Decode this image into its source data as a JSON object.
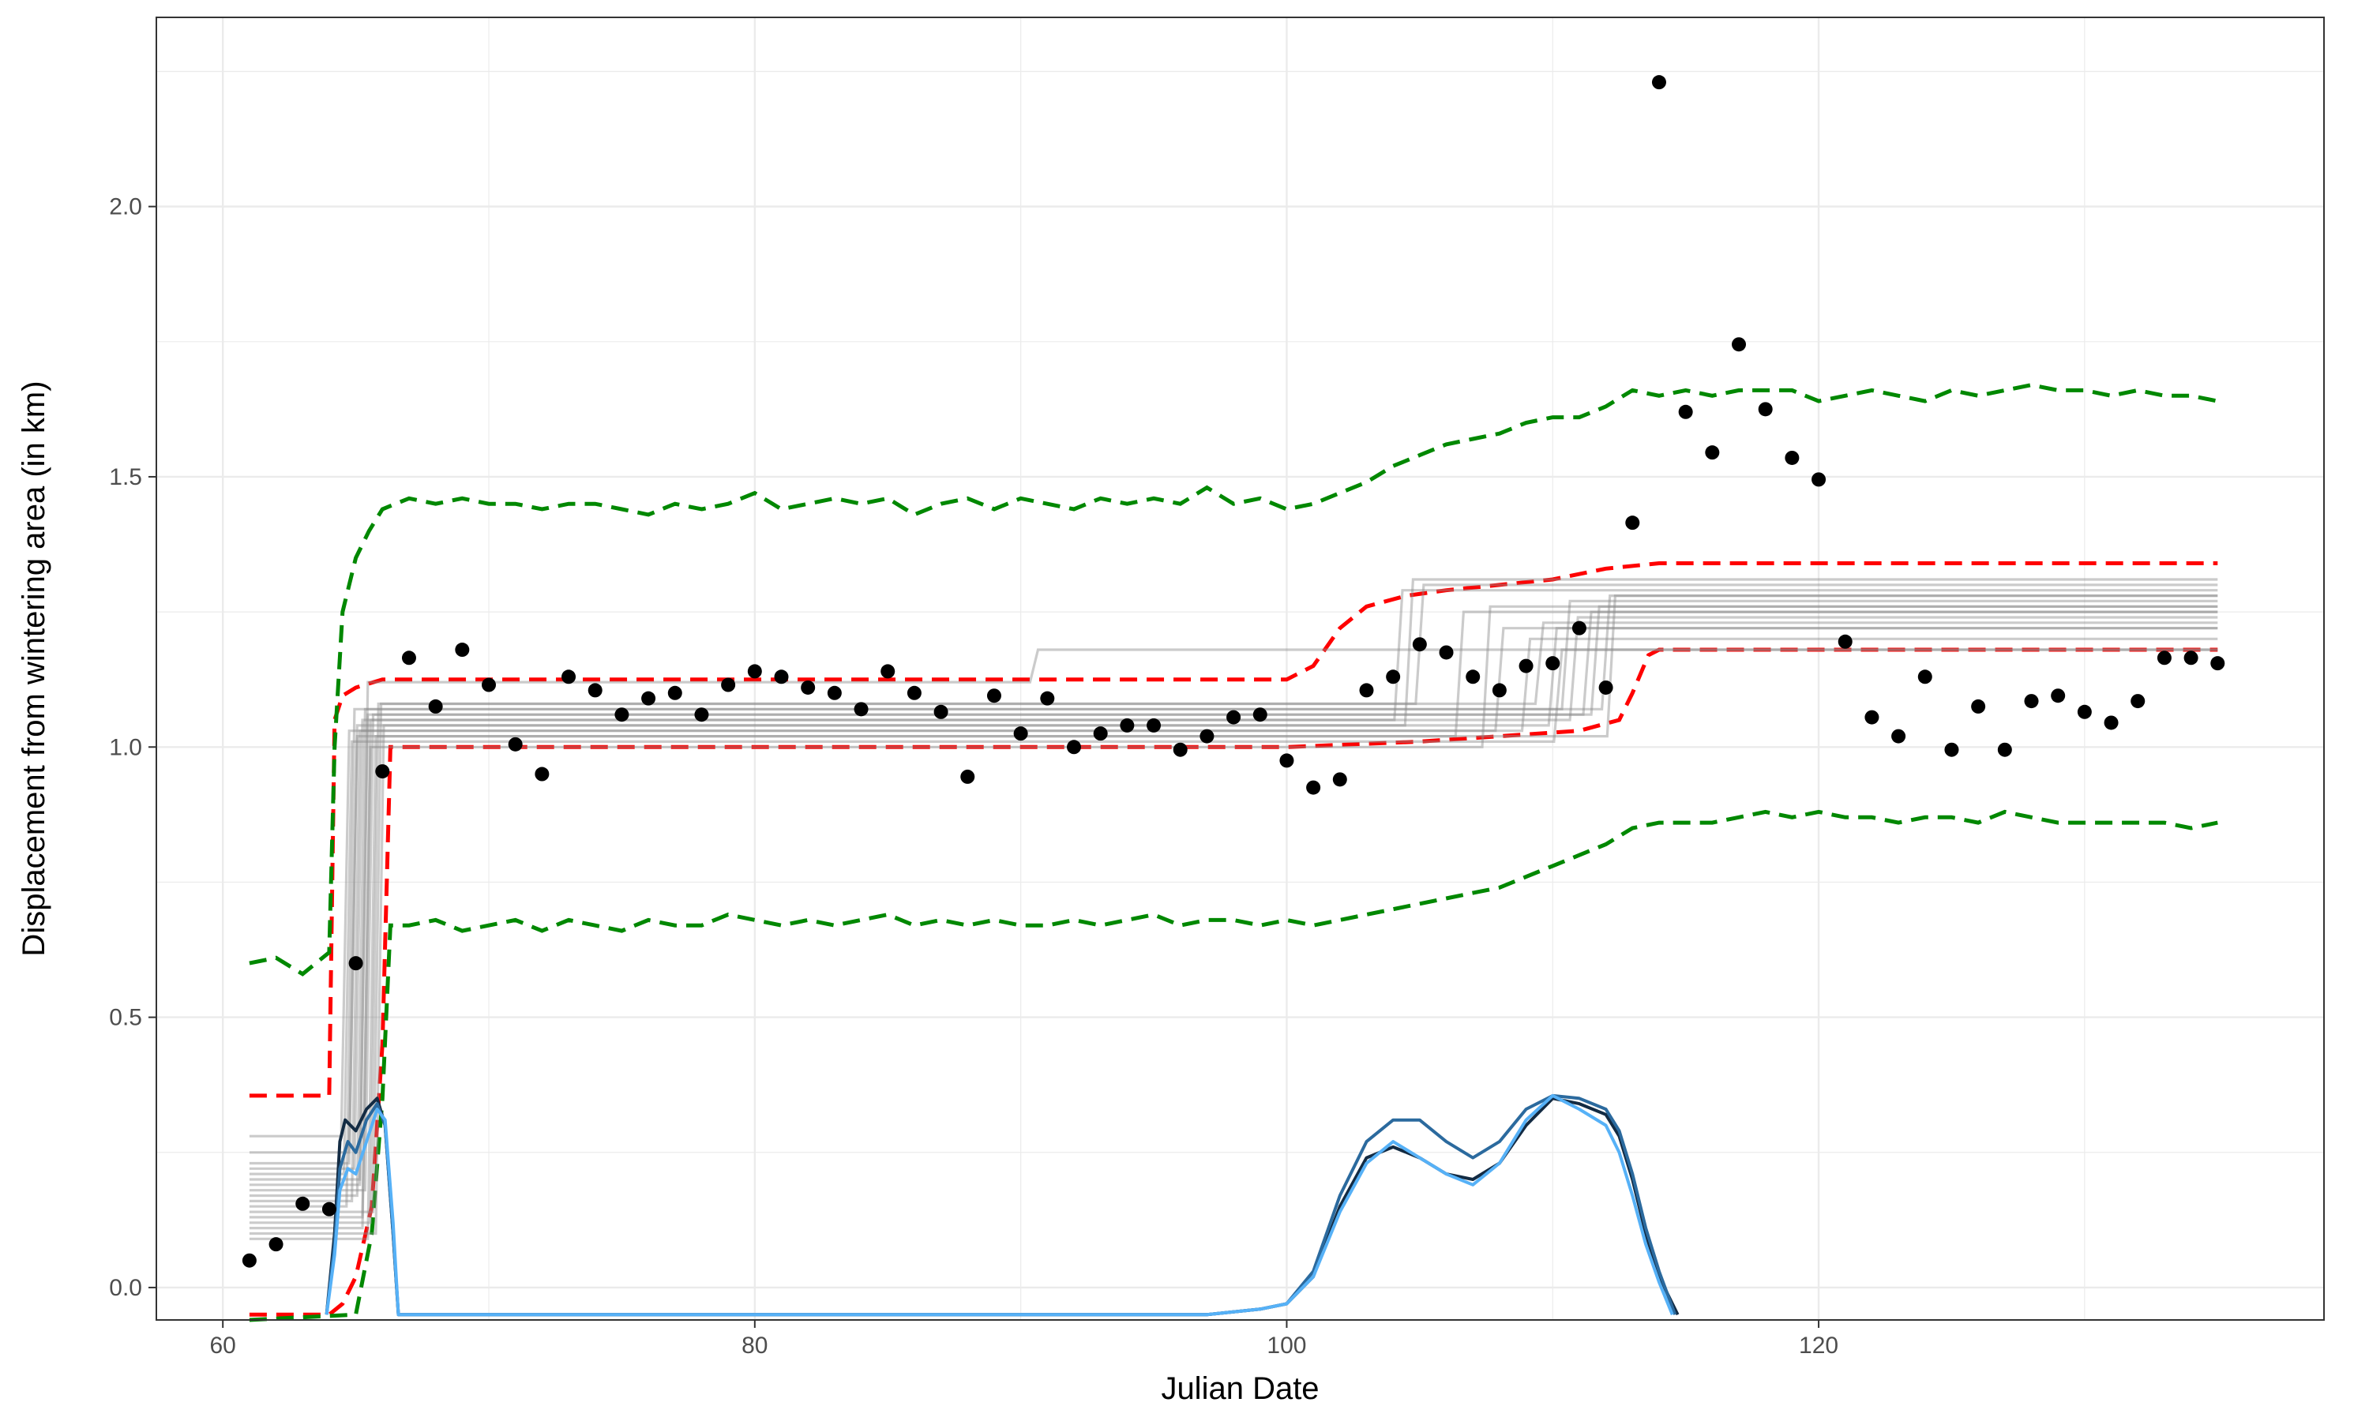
{
  "chart_data": {
    "type": "scatter",
    "title": "",
    "xlabel": "Julian Date",
    "ylabel": "Displacement from wintering area (in km)",
    "xlim": [
      57.5,
      139
    ],
    "ylim": [
      -0.06,
      2.35
    ],
    "x_ticks": [
      60,
      80,
      100,
      120
    ],
    "x_tick_labels": [
      "60",
      "80",
      "100",
      "120"
    ],
    "y_ticks": [
      0.0,
      0.5,
      1.0,
      1.5,
      2.0
    ],
    "y_tick_labels": [
      "0.0",
      "0.5",
      "1.0",
      "1.5",
      "2.0"
    ],
    "grid": true,
    "legend": "none",
    "colors": {
      "points": "#000000",
      "fit_lines": "#8c8c8c",
      "inner_band": "#ff0000",
      "outer_band": "#008800",
      "density_dark": "#132b43",
      "density_mid": "#2b6a9e",
      "density_light": "#56b1f7",
      "grid": "#ebebeb"
    },
    "points": [
      [
        61,
        0.05
      ],
      [
        62,
        0.08
      ],
      [
        63,
        0.155
      ],
      [
        64,
        0.145
      ],
      [
        65,
        0.6
      ],
      [
        66,
        0.955
      ],
      [
        67,
        1.165
      ],
      [
        68,
        1.075
      ],
      [
        69,
        1.18
      ],
      [
        70,
        1.115
      ],
      [
        71,
        1.005
      ],
      [
        72,
        0.95
      ],
      [
        73,
        1.13
      ],
      [
        74,
        1.105
      ],
      [
        75,
        1.06
      ],
      [
        76,
        1.09
      ],
      [
        77,
        1.1
      ],
      [
        78,
        1.06
      ],
      [
        79,
        1.115
      ],
      [
        80,
        1.14
      ],
      [
        81,
        1.13
      ],
      [
        82,
        1.11
      ],
      [
        83,
        1.1
      ],
      [
        84,
        1.07
      ],
      [
        85,
        1.14
      ],
      [
        86,
        1.1
      ],
      [
        87,
        1.065
      ],
      [
        88,
        0.945
      ],
      [
        89,
        1.095
      ],
      [
        90,
        1.025
      ],
      [
        91,
        1.09
      ],
      [
        92,
        1.0
      ],
      [
        93,
        1.025
      ],
      [
        94,
        1.04
      ],
      [
        95,
        1.04
      ],
      [
        96,
        0.995
      ],
      [
        97,
        1.02
      ],
      [
        98,
        1.055
      ],
      [
        99,
        1.06
      ],
      [
        100,
        0.975
      ],
      [
        101,
        0.925
      ],
      [
        102,
        0.94
      ],
      [
        103,
        1.105
      ],
      [
        104,
        1.13
      ],
      [
        105,
        1.19
      ],
      [
        106,
        1.175
      ],
      [
        107,
        1.13
      ],
      [
        108,
        1.105
      ],
      [
        109,
        1.15
      ],
      [
        110,
        1.155
      ],
      [
        111,
        1.22
      ],
      [
        112,
        1.11
      ],
      [
        113,
        1.415
      ],
      [
        114,
        2.23
      ],
      [
        115,
        1.62
      ],
      [
        116,
        1.545
      ],
      [
        117,
        1.745
      ],
      [
        118,
        1.625
      ],
      [
        119,
        1.535
      ],
      [
        120,
        1.495
      ],
      [
        121,
        1.195
      ],
      [
        122,
        1.055
      ],
      [
        123,
        1.02
      ],
      [
        124,
        1.13
      ],
      [
        125,
        0.995
      ],
      [
        126,
        1.075
      ],
      [
        127,
        0.995
      ],
      [
        128,
        1.085
      ],
      [
        129,
        1.095
      ],
      [
        130,
        1.065
      ],
      [
        131,
        1.045
      ],
      [
        132,
        1.085
      ],
      [
        133,
        1.165
      ],
      [
        134,
        1.165
      ],
      [
        135,
        1.155
      ]
    ],
    "fit_lines": [
      {
        "y0": 0.28,
        "t1": 64.6,
        "y1": 1.03,
        "t2": 109.0,
        "y2": 1.2
      },
      {
        "y0": 0.25,
        "t1": 64.9,
        "y1": 1.04,
        "t2": 110.0,
        "y2": 1.22
      },
      {
        "y0": 0.22,
        "t1": 65.1,
        "y1": 1.05,
        "t2": 110.8,
        "y2": 1.24
      },
      {
        "y0": 0.2,
        "t1": 65.3,
        "y1": 1.06,
        "t2": 111.3,
        "y2": 1.25
      },
      {
        "y0": 0.18,
        "t1": 65.5,
        "y1": 1.06,
        "t2": 111.6,
        "y2": 1.26
      },
      {
        "y0": 0.17,
        "t1": 65.2,
        "y1": 1.07,
        "t2": 110.5,
        "y2": 1.27
      },
      {
        "y0": 0.15,
        "t1": 64.8,
        "y1": 1.07,
        "t2": 112.0,
        "y2": 1.28
      },
      {
        "y0": 0.13,
        "t1": 65.4,
        "y1": 1.05,
        "t2": 104.2,
        "y2": 1.29
      },
      {
        "y0": 0.12,
        "t1": 65.7,
        "y1": 1.08,
        "t2": 105.0,
        "y2": 1.3
      },
      {
        "y0": 0.1,
        "t1": 65.9,
        "y1": 1.04,
        "t2": 104.6,
        "y2": 1.31
      },
      {
        "y0": 0.09,
        "t1": 65.6,
        "y1": 1.02,
        "t2": 106.5,
        "y2": 1.25
      },
      {
        "y0": 0.16,
        "t1": 65.0,
        "y1": 1.03,
        "t2": 108.0,
        "y2": 1.22
      },
      {
        "y0": 0.21,
        "t1": 64.7,
        "y1": 1.01,
        "t2": 110.2,
        "y2": 1.18
      },
      {
        "y0": 0.14,
        "t1": 65.8,
        "y1": 1.08,
        "t2": 109.5,
        "y2": 1.23
      },
      {
        "y0": 0.19,
        "t1": 65.3,
        "y1": 1.12,
        "t2": 90.5,
        "y2": 1.18
      },
      {
        "y0": 0.23,
        "t1": 64.9,
        "y1": 1.02,
        "t2": 112.2,
        "y2": 1.28
      },
      {
        "y0": 0.11,
        "t1": 65.4,
        "y1": 1.0,
        "t2": 107.5,
        "y2": 1.26
      }
    ],
    "band_red_upper": [
      [
        61,
        0.355
      ],
      [
        64,
        0.355
      ],
      [
        64.2,
        1.05
      ],
      [
        64.5,
        1.095
      ],
      [
        65,
        1.11
      ],
      [
        66,
        1.125
      ],
      [
        75,
        1.125
      ],
      [
        100,
        1.125
      ],
      [
        101,
        1.15
      ],
      [
        102,
        1.22
      ],
      [
        103,
        1.26
      ],
      [
        104.5,
        1.28
      ],
      [
        106,
        1.29
      ],
      [
        108,
        1.3
      ],
      [
        110,
        1.31
      ],
      [
        112,
        1.33
      ],
      [
        114,
        1.34
      ],
      [
        135,
        1.34
      ]
    ],
    "band_red_lower": [
      [
        61,
        -0.05
      ],
      [
        64,
        -0.05
      ],
      [
        64.5,
        -0.03
      ],
      [
        65,
        0.02
      ],
      [
        65.6,
        0.15
      ],
      [
        66,
        0.45
      ],
      [
        66.3,
        1.0
      ],
      [
        75,
        1.0
      ],
      [
        100,
        1.0
      ],
      [
        105,
        1.01
      ],
      [
        108,
        1.02
      ],
      [
        111,
        1.03
      ],
      [
        112.5,
        1.05
      ],
      [
        113,
        1.1
      ],
      [
        113.6,
        1.17
      ],
      [
        114,
        1.18
      ],
      [
        135,
        1.18
      ]
    ],
    "band_green_upper": [
      [
        61,
        0.6
      ],
      [
        62,
        0.61
      ],
      [
        63,
        0.58
      ],
      [
        64,
        0.62
      ],
      [
        64.2,
        1.0
      ],
      [
        64.5,
        1.25
      ],
      [
        65,
        1.35
      ],
      [
        65.5,
        1.4
      ],
      [
        66,
        1.44
      ],
      [
        67,
        1.46
      ],
      [
        68,
        1.45
      ],
      [
        69,
        1.46
      ],
      [
        70,
        1.45
      ],
      [
        71,
        1.45
      ],
      [
        72,
        1.44
      ],
      [
        73,
        1.45
      ],
      [
        74,
        1.45
      ],
      [
        75,
        1.44
      ],
      [
        76,
        1.43
      ],
      [
        77,
        1.45
      ],
      [
        78,
        1.44
      ],
      [
        79,
        1.45
      ],
      [
        80,
        1.47
      ],
      [
        81,
        1.44
      ],
      [
        82,
        1.45
      ],
      [
        83,
        1.46
      ],
      [
        84,
        1.45
      ],
      [
        85,
        1.46
      ],
      [
        86,
        1.43
      ],
      [
        87,
        1.45
      ],
      [
        88,
        1.46
      ],
      [
        89,
        1.44
      ],
      [
        90,
        1.46
      ],
      [
        91,
        1.45
      ],
      [
        92,
        1.44
      ],
      [
        93,
        1.46
      ],
      [
        94,
        1.45
      ],
      [
        95,
        1.46
      ],
      [
        96,
        1.45
      ],
      [
        97,
        1.48
      ],
      [
        98,
        1.45
      ],
      [
        99,
        1.46
      ],
      [
        100,
        1.44
      ],
      [
        101,
        1.45
      ],
      [
        102,
        1.47
      ],
      [
        103,
        1.49
      ],
      [
        104,
        1.52
      ],
      [
        105,
        1.54
      ],
      [
        106,
        1.56
      ],
      [
        107,
        1.57
      ],
      [
        108,
        1.58
      ],
      [
        109,
        1.6
      ],
      [
        110,
        1.61
      ],
      [
        111,
        1.61
      ],
      [
        112,
        1.63
      ],
      [
        113,
        1.66
      ],
      [
        114,
        1.65
      ],
      [
        115,
        1.66
      ],
      [
        116,
        1.65
      ],
      [
        117,
        1.66
      ],
      [
        118,
        1.66
      ],
      [
        119,
        1.66
      ],
      [
        120,
        1.64
      ],
      [
        121,
        1.65
      ],
      [
        122,
        1.66
      ],
      [
        123,
        1.65
      ],
      [
        124,
        1.64
      ],
      [
        125,
        1.66
      ],
      [
        126,
        1.65
      ],
      [
        127,
        1.66
      ],
      [
        128,
        1.67
      ],
      [
        129,
        1.66
      ],
      [
        130,
        1.66
      ],
      [
        131,
        1.65
      ],
      [
        132,
        1.66
      ],
      [
        133,
        1.65
      ],
      [
        134,
        1.65
      ],
      [
        135,
        1.64
      ]
    ],
    "band_green_lower": [
      [
        61,
        -0.06
      ],
      [
        65,
        -0.05
      ],
      [
        65.6,
        0.1
      ],
      [
        66,
        0.35
      ],
      [
        66.3,
        0.67
      ],
      [
        67,
        0.67
      ],
      [
        68,
        0.68
      ],
      [
        69,
        0.66
      ],
      [
        70,
        0.67
      ],
      [
        71,
        0.68
      ],
      [
        72,
        0.66
      ],
      [
        73,
        0.68
      ],
      [
        74,
        0.67
      ],
      [
        75,
        0.66
      ],
      [
        76,
        0.68
      ],
      [
        77,
        0.67
      ],
      [
        78,
        0.67
      ],
      [
        79,
        0.69
      ],
      [
        80,
        0.68
      ],
      [
        81,
        0.67
      ],
      [
        82,
        0.68
      ],
      [
        83,
        0.67
      ],
      [
        84,
        0.68
      ],
      [
        85,
        0.69
      ],
      [
        86,
        0.67
      ],
      [
        87,
        0.68
      ],
      [
        88,
        0.67
      ],
      [
        89,
        0.68
      ],
      [
        90,
        0.67
      ],
      [
        91,
        0.67
      ],
      [
        92,
        0.68
      ],
      [
        93,
        0.67
      ],
      [
        94,
        0.68
      ],
      [
        95,
        0.69
      ],
      [
        96,
        0.67
      ],
      [
        97,
        0.68
      ],
      [
        98,
        0.68
      ],
      [
        99,
        0.67
      ],
      [
        100,
        0.68
      ],
      [
        101,
        0.67
      ],
      [
        102,
        0.68
      ],
      [
        103,
        0.69
      ],
      [
        104,
        0.7
      ],
      [
        105,
        0.71
      ],
      [
        106,
        0.72
      ],
      [
        107,
        0.73
      ],
      [
        108,
        0.74
      ],
      [
        109,
        0.76
      ],
      [
        110,
        0.78
      ],
      [
        111,
        0.8
      ],
      [
        112,
        0.82
      ],
      [
        113,
        0.85
      ],
      [
        114,
        0.86
      ],
      [
        115,
        0.86
      ],
      [
        116,
        0.86
      ],
      [
        117,
        0.87
      ],
      [
        118,
        0.88
      ],
      [
        119,
        0.87
      ],
      [
        120,
        0.88
      ],
      [
        121,
        0.87
      ],
      [
        122,
        0.87
      ],
      [
        123,
        0.86
      ],
      [
        124,
        0.87
      ],
      [
        125,
        0.87
      ],
      [
        126,
        0.86
      ],
      [
        127,
        0.88
      ],
      [
        128,
        0.87
      ],
      [
        129,
        0.86
      ],
      [
        130,
        0.86
      ],
      [
        131,
        0.86
      ],
      [
        132,
        0.86
      ],
      [
        133,
        0.86
      ],
      [
        134,
        0.85
      ],
      [
        135,
        0.86
      ]
    ],
    "density_curves": [
      {
        "name_hidden": "dark",
        "points": [
          [
            63.9,
            -0.05
          ],
          [
            64.2,
            0.1
          ],
          [
            64.4,
            0.27
          ],
          [
            64.6,
            0.31
          ],
          [
            65,
            0.29
          ],
          [
            65.4,
            0.33
          ],
          [
            65.8,
            0.35
          ],
          [
            66.1,
            0.3
          ],
          [
            66.4,
            0.1
          ],
          [
            66.6,
            -0.05
          ],
          [
            97,
            -0.05
          ],
          [
            99,
            -0.04
          ],
          [
            100,
            -0.03
          ],
          [
            101,
            0.02
          ],
          [
            102,
            0.15
          ],
          [
            103,
            0.24
          ],
          [
            104,
            0.26
          ],
          [
            105,
            0.24
          ],
          [
            106,
            0.21
          ],
          [
            107,
            0.2
          ],
          [
            108,
            0.23
          ],
          [
            109,
            0.3
          ],
          [
            110,
            0.35
          ],
          [
            111,
            0.34
          ],
          [
            112,
            0.32
          ],
          [
            112.5,
            0.28
          ],
          [
            113,
            0.2
          ],
          [
            113.5,
            0.1
          ],
          [
            114,
            0.02
          ],
          [
            114.7,
            -0.05
          ]
        ]
      },
      {
        "name_hidden": "mid",
        "points": [
          [
            63.9,
            -0.05
          ],
          [
            64.2,
            0.08
          ],
          [
            64.4,
            0.22
          ],
          [
            64.7,
            0.27
          ],
          [
            65,
            0.25
          ],
          [
            65.4,
            0.31
          ],
          [
            65.8,
            0.34
          ],
          [
            66.1,
            0.3
          ],
          [
            66.4,
            0.1
          ],
          [
            66.6,
            -0.05
          ],
          [
            97,
            -0.05
          ],
          [
            99,
            -0.04
          ],
          [
            100,
            -0.03
          ],
          [
            101,
            0.03
          ],
          [
            102,
            0.17
          ],
          [
            103,
            0.27
          ],
          [
            104,
            0.31
          ],
          [
            105,
            0.31
          ],
          [
            106,
            0.27
          ],
          [
            107,
            0.24
          ],
          [
            108,
            0.27
          ],
          [
            109,
            0.33
          ],
          [
            110,
            0.355
          ],
          [
            111,
            0.35
          ],
          [
            112,
            0.33
          ],
          [
            112.5,
            0.29
          ],
          [
            113,
            0.21
          ],
          [
            113.5,
            0.11
          ],
          [
            114,
            0.03
          ],
          [
            114.6,
            -0.05
          ]
        ]
      },
      {
        "name_hidden": "light",
        "points": [
          [
            63.9,
            -0.05
          ],
          [
            64.2,
            0.06
          ],
          [
            64.4,
            0.18
          ],
          [
            64.7,
            0.22
          ],
          [
            65,
            0.21
          ],
          [
            65.4,
            0.27
          ],
          [
            65.8,
            0.33
          ],
          [
            66.1,
            0.31
          ],
          [
            66.4,
            0.12
          ],
          [
            66.6,
            -0.05
          ],
          [
            97,
            -0.05
          ],
          [
            99,
            -0.04
          ],
          [
            100,
            -0.03
          ],
          [
            101,
            0.02
          ],
          [
            102,
            0.14
          ],
          [
            103,
            0.23
          ],
          [
            104,
            0.27
          ],
          [
            105,
            0.24
          ],
          [
            106,
            0.21
          ],
          [
            107,
            0.19
          ],
          [
            108,
            0.23
          ],
          [
            109,
            0.31
          ],
          [
            110,
            0.355
          ],
          [
            111,
            0.33
          ],
          [
            112,
            0.3
          ],
          [
            112.5,
            0.25
          ],
          [
            113,
            0.17
          ],
          [
            113.5,
            0.08
          ],
          [
            114,
            0.01
          ],
          [
            114.5,
            -0.05
          ]
        ]
      }
    ]
  }
}
